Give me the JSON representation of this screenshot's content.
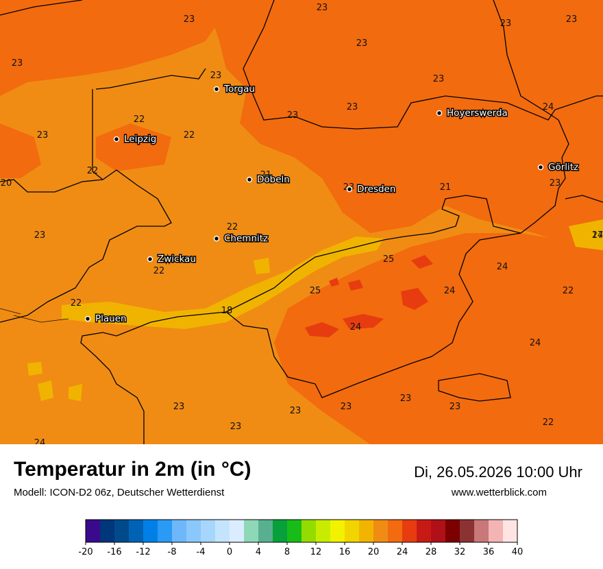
{
  "title": "Temperatur in 2m (in °C)",
  "subtitle": "Modell: ICON-D2 06z, Deutscher Wetterdienst",
  "datetime": "Di, 26.05.2026 10:00 Uhr",
  "website": "www.wetterblick.com",
  "cities": [
    {
      "name": "Torgau"
    },
    {
      "name": "Hoyerswerda"
    },
    {
      "name": "Leipzig"
    },
    {
      "name": "Görlitz"
    },
    {
      "name": "Döbeln"
    },
    {
      "name": "Dresden"
    },
    {
      "name": "Chemnitz"
    },
    {
      "name": "Zwickau"
    },
    {
      "name": "Plauen"
    }
  ],
  "values": [
    "23",
    "23",
    "23",
    "23",
    "23",
    "23",
    "23",
    "23",
    "23",
    "23",
    "23",
    "24",
    "22",
    "22",
    "23",
    "22",
    "20",
    "21",
    "23",
    "21",
    "23",
    "22",
    "22",
    "25",
    "24",
    "22",
    "24",
    "22",
    "25",
    "24",
    "18",
    "24",
    "24",
    "23",
    "23",
    "23",
    "23",
    "23",
    "22",
    "23",
    "24",
    "17"
  ],
  "colors": {
    "temp_17_18": "#f0b400",
    "temp_20_22": "#f08c14",
    "temp_22_24": "#f26b0e",
    "temp_24_26": "#e63c10",
    "border": "#000000"
  },
  "legend": {
    "ticks": [
      "-20",
      "-16",
      "-12",
      "-8",
      "-4",
      "0",
      "4",
      "8",
      "12",
      "16",
      "20",
      "24",
      "28",
      "32",
      "36",
      "40"
    ],
    "colors": [
      "#3a0a8c",
      "#00367a",
      "#004a8c",
      "#0062b4",
      "#0080e6",
      "#2a9af5",
      "#6eb8fa",
      "#8ac8fb",
      "#a6d6fc",
      "#c4e4fd",
      "#dcecff",
      "#8ed8b8",
      "#58b090",
      "#08a03c",
      "#18bc18",
      "#94dc00",
      "#c8ec00",
      "#f2f200",
      "#f2d400",
      "#f2b400",
      "#f08c14",
      "#f26b0e",
      "#e63c10",
      "#c81a14",
      "#b01018",
      "#7c0000",
      "#8c3232",
      "#c87878",
      "#f4b4b4",
      "#ffe4e4"
    ]
  }
}
